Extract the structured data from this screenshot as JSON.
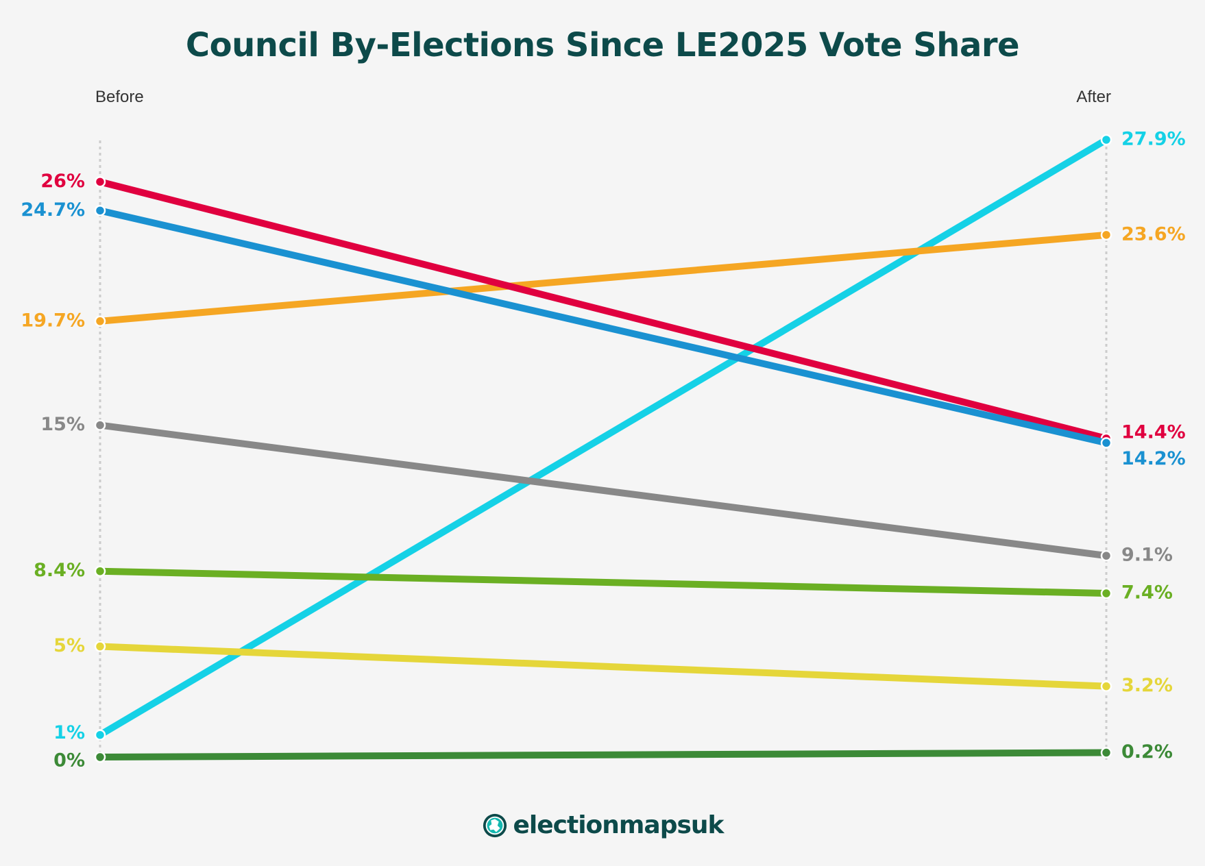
{
  "chart_data": {
    "type": "line",
    "title": "Council By-Elections Since LE2025 Vote Share",
    "categories": [
      "Before",
      "After"
    ],
    "ylim": [
      0,
      27.9
    ],
    "grid": false,
    "series": [
      {
        "color": "#15d1e6",
        "values": [
          1,
          27.9
        ],
        "labels": [
          "1%",
          "27.9%"
        ]
      },
      {
        "color": "#f5a623",
        "values": [
          19.7,
          23.6
        ],
        "labels": [
          "19.7%",
          "23.6%"
        ]
      },
      {
        "color": "#e0003f",
        "values": [
          26,
          14.4
        ],
        "labels": [
          "26%",
          "14.4%"
        ]
      },
      {
        "color": "#1a91d1",
        "values": [
          24.7,
          14.2
        ],
        "labels": [
          "24.7%",
          "14.2%"
        ]
      },
      {
        "color": "#888888",
        "values": [
          15,
          9.1
        ],
        "labels": [
          "15%",
          "9.1%"
        ]
      },
      {
        "color": "#6aaf23",
        "values": [
          8.4,
          7.4
        ],
        "labels": [
          "8.4%",
          "7.4%"
        ]
      },
      {
        "color": "#e5d63a",
        "values": [
          5,
          3.2
        ],
        "labels": [
          "5%",
          "3.2%"
        ]
      },
      {
        "color": "#3c8a37",
        "values": [
          0,
          0.2
        ],
        "labels": [
          "0%",
          "0.2%"
        ]
      }
    ]
  },
  "branding": {
    "logo_text": "electionmapsuk",
    "logo_icon": "globe-icon"
  }
}
